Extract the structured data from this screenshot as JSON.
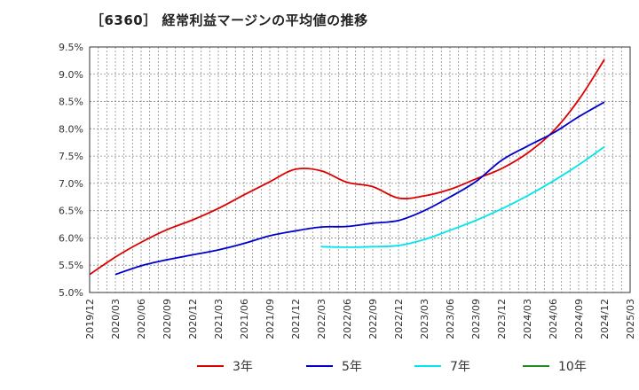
{
  "chart_data": {
    "type": "line",
    "title": "［6360］ 経常利益マージンの平均値の推移",
    "xlabel": "",
    "ylabel": "",
    "ylim": [
      5.0,
      9.5
    ],
    "grid": true,
    "legend_position": "bottom",
    "x_ticks": [
      "2019/12",
      "2020/03",
      "2020/06",
      "2020/09",
      "2020/12",
      "2021/03",
      "2021/06",
      "2021/09",
      "2021/12",
      "2022/03",
      "2022/06",
      "2022/09",
      "2022/12",
      "2023/03",
      "2023/06",
      "2023/09",
      "2023/12",
      "2024/03",
      "2024/06",
      "2024/09",
      "2024/12",
      "2025/03"
    ],
    "y_ticks": [
      "5.0%",
      "5.5%",
      "6.0%",
      "6.5%",
      "7.0%",
      "7.5%",
      "8.0%",
      "8.5%",
      "9.0%",
      "9.5%"
    ],
    "x": [
      "2019/12",
      "2020/03",
      "2020/06",
      "2020/09",
      "2020/12",
      "2021/03",
      "2021/06",
      "2021/09",
      "2021/12",
      "2022/03",
      "2022/06",
      "2022/09",
      "2022/12",
      "2023/03",
      "2023/06",
      "2023/09",
      "2023/12",
      "2024/03",
      "2024/06",
      "2024/09",
      "2024/12"
    ],
    "series": [
      {
        "name": "3年",
        "color": "#dd0000",
        "values": [
          5.33,
          5.65,
          5.92,
          6.15,
          6.33,
          6.54,
          6.79,
          7.03,
          7.26,
          7.23,
          7.02,
          6.94,
          6.73,
          6.77,
          6.89,
          7.08,
          7.27,
          7.55,
          7.95,
          8.53,
          9.27
        ]
      },
      {
        "name": "5年",
        "color": "#0000cc",
        "values": [
          null,
          5.33,
          5.49,
          5.6,
          5.69,
          5.78,
          5.9,
          6.04,
          6.13,
          6.2,
          6.21,
          6.27,
          6.32,
          6.5,
          6.75,
          7.03,
          7.42,
          7.68,
          7.92,
          8.22,
          8.49
        ]
      },
      {
        "name": "7年",
        "color": "#00e5ee",
        "values": [
          null,
          null,
          null,
          null,
          null,
          null,
          null,
          null,
          null,
          5.84,
          5.83,
          5.84,
          5.86,
          5.97,
          6.14,
          6.32,
          6.53,
          6.77,
          7.04,
          7.34,
          7.67
        ]
      },
      {
        "name": "10年",
        "color": "#228b22",
        "values": [
          null,
          null,
          null,
          null,
          null,
          null,
          null,
          null,
          null,
          null,
          null,
          null,
          null,
          null,
          null,
          null,
          null,
          null,
          null,
          null,
          null
        ]
      }
    ]
  }
}
